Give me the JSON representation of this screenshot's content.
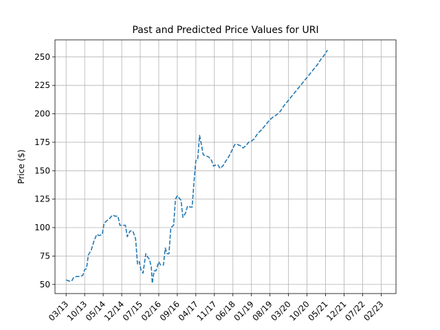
{
  "chart_data": {
    "type": "line",
    "title": "Past and Predicted Price Values for URI",
    "xlabel": "",
    "ylabel": "Price ($)",
    "grid": true,
    "line_style": "dashed",
    "colors": {
      "line": "#1f77b4",
      "grid": "#b0b0b0",
      "axis": "#000000"
    },
    "x_tick_labels": [
      "03/13",
      "10/13",
      "05/14",
      "12/14",
      "07/15",
      "02/16",
      "09/16",
      "04/17",
      "11/17",
      "06/18",
      "01/19",
      "08/19",
      "03/20",
      "10/20",
      "05/21",
      "12/21",
      "07/22",
      "02/23"
    ],
    "ylim": [
      42,
      265
    ],
    "y_ticks": [
      50,
      75,
      100,
      125,
      150,
      175,
      200,
      225,
      250
    ],
    "xlim": [
      -0.6,
      17.8
    ],
    "series": [
      {
        "values": [
          [
            0.0,
            54
          ],
          [
            0.15,
            53
          ],
          [
            0.3,
            53
          ],
          [
            0.4,
            56
          ],
          [
            0.55,
            57
          ],
          [
            0.75,
            57
          ],
          [
            0.9,
            58
          ],
          [
            1.0,
            63
          ],
          [
            1.1,
            64
          ],
          [
            1.2,
            76
          ],
          [
            1.35,
            80
          ],
          [
            1.5,
            88
          ],
          [
            1.65,
            94
          ],
          [
            1.8,
            93
          ],
          [
            1.95,
            94
          ],
          [
            2.05,
            104
          ],
          [
            2.2,
            106
          ],
          [
            2.35,
            108
          ],
          [
            2.5,
            111
          ],
          [
            2.65,
            110
          ],
          [
            2.8,
            110
          ],
          [
            2.9,
            102
          ],
          [
            3.05,
            102
          ],
          [
            3.2,
            102
          ],
          [
            3.3,
            92
          ],
          [
            3.45,
            97
          ],
          [
            3.6,
            97
          ],
          [
            3.75,
            90
          ],
          [
            3.85,
            68
          ],
          [
            3.95,
            70
          ],
          [
            4.05,
            62
          ],
          [
            4.15,
            60
          ],
          [
            4.3,
            77
          ],
          [
            4.4,
            74
          ],
          [
            4.5,
            72
          ],
          [
            4.6,
            65
          ],
          [
            4.65,
            51
          ],
          [
            4.75,
            62
          ],
          [
            4.85,
            62
          ],
          [
            5.0,
            70
          ],
          [
            5.1,
            67
          ],
          [
            5.25,
            67
          ],
          [
            5.35,
            82
          ],
          [
            5.45,
            77
          ],
          [
            5.55,
            77
          ],
          [
            5.65,
            100
          ],
          [
            5.8,
            102
          ],
          [
            5.9,
            125
          ],
          [
            6.0,
            128
          ],
          [
            6.1,
            126
          ],
          [
            6.2,
            124
          ],
          [
            6.3,
            109
          ],
          [
            6.45,
            113
          ],
          [
            6.55,
            119
          ],
          [
            6.7,
            118
          ],
          [
            6.8,
            118
          ],
          [
            6.9,
            140
          ],
          [
            7.0,
            159
          ],
          [
            7.1,
            160
          ],
          [
            7.2,
            181
          ],
          [
            7.3,
            173
          ],
          [
            7.4,
            164
          ],
          [
            7.55,
            163
          ],
          [
            7.7,
            162
          ],
          [
            7.85,
            159
          ],
          [
            7.95,
            154
          ],
          [
            8.05,
            155
          ],
          [
            8.2,
            155
          ],
          [
            8.3,
            152
          ],
          [
            8.45,
            154
          ],
          [
            8.6,
            158
          ],
          [
            8.8,
            163
          ],
          [
            8.95,
            168
          ],
          [
            9.1,
            173
          ],
          [
            9.25,
            173
          ],
          [
            9.4,
            172
          ],
          [
            9.55,
            170
          ],
          [
            9.7,
            172
          ],
          [
            9.85,
            175
          ],
          [
            10.0,
            176
          ],
          [
            10.15,
            178
          ],
          [
            10.35,
            183
          ],
          [
            10.55,
            186
          ],
          [
            10.75,
            190
          ],
          [
            10.95,
            194
          ],
          [
            11.15,
            197
          ],
          [
            11.35,
            199
          ],
          [
            11.55,
            202
          ],
          [
            11.75,
            207
          ],
          [
            11.95,
            211
          ],
          [
            12.15,
            215
          ],
          [
            12.35,
            219
          ],
          [
            12.55,
            223
          ],
          [
            12.75,
            227
          ],
          [
            12.95,
            231
          ],
          [
            13.15,
            235
          ],
          [
            13.35,
            239
          ],
          [
            13.55,
            243
          ],
          [
            13.75,
            248
          ],
          [
            13.95,
            252
          ],
          [
            14.1,
            256
          ]
        ]
      }
    ]
  }
}
